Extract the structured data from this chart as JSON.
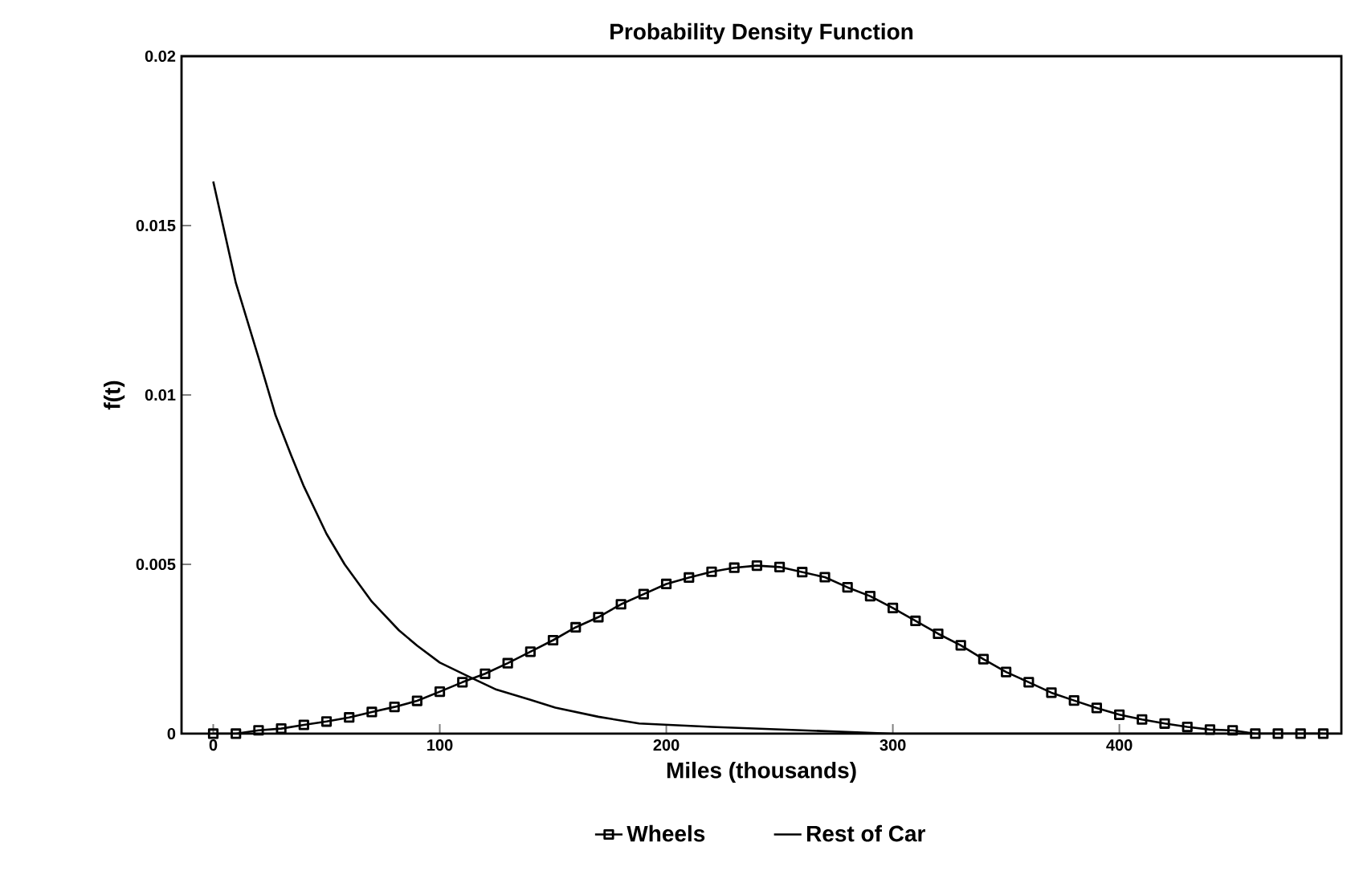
{
  "chart_data": {
    "type": "line",
    "title": "Probability Density Function",
    "xlabel": "Miles (thousands)",
    "ylabel": "f(t)",
    "xlim": [
      -14,
      498
    ],
    "ylim": [
      0,
      0.02
    ],
    "xticks": [
      0,
      100,
      200,
      300,
      400
    ],
    "yticks": [
      0,
      0.005,
      0.01,
      0.015,
      0.02
    ],
    "legend": "bottom",
    "grid": false,
    "series": [
      {
        "name": "Wheels",
        "color": "#000000",
        "marker": "square",
        "line_style": "solid",
        "x": [
          0,
          10,
          20,
          30,
          40,
          50,
          60,
          70,
          80,
          90,
          100,
          110,
          120,
          130,
          140,
          150,
          160,
          170,
          180,
          190,
          200,
          210,
          220,
          230,
          240,
          250,
          260,
          270,
          280,
          290,
          300,
          310,
          320,
          330,
          340,
          350,
          360,
          370,
          380,
          390,
          400,
          410,
          420,
          430,
          440,
          450,
          460,
          470,
          480,
          490
        ],
        "values": [
          0.0,
          0.0,
          0.0001,
          0.00015,
          0.00026,
          0.00036,
          0.00048,
          0.00064,
          0.00079,
          0.00097,
          0.00124,
          0.00152,
          0.00177,
          0.00208,
          0.00242,
          0.00276,
          0.00314,
          0.00344,
          0.00382,
          0.00412,
          0.00442,
          0.00461,
          0.00478,
          0.0049,
          0.00496,
          0.00492,
          0.00477,
          0.00462,
          0.00432,
          0.00406,
          0.00371,
          0.00333,
          0.00295,
          0.00261,
          0.0022,
          0.00182,
          0.00152,
          0.00121,
          0.00098,
          0.00076,
          0.00056,
          0.00042,
          0.0003,
          0.0002,
          0.00012,
          0.0001,
          0.0,
          0.0,
          0.0,
          0.0
        ]
      },
      {
        "name": "Rest of Car",
        "color": "#000000",
        "marker": "none",
        "line_style": "solid",
        "x": [
          0,
          10,
          20,
          27.5,
          34.5,
          40,
          50,
          58,
          70,
          82,
          90,
          100,
          113,
          125,
          140,
          151,
          170,
          188,
          220,
          260,
          300,
          400,
          497
        ],
        "values": [
          0.0163,
          0.0133,
          0.0111,
          0.0094,
          0.0082,
          0.0073,
          0.0059,
          0.005,
          0.0039,
          0.00305,
          0.0026,
          0.0021,
          0.00168,
          0.0013,
          0.001,
          0.00077,
          0.0005,
          0.0003,
          0.0002,
          0.0001,
          0.0,
          0.0,
          0.0
        ]
      }
    ]
  }
}
